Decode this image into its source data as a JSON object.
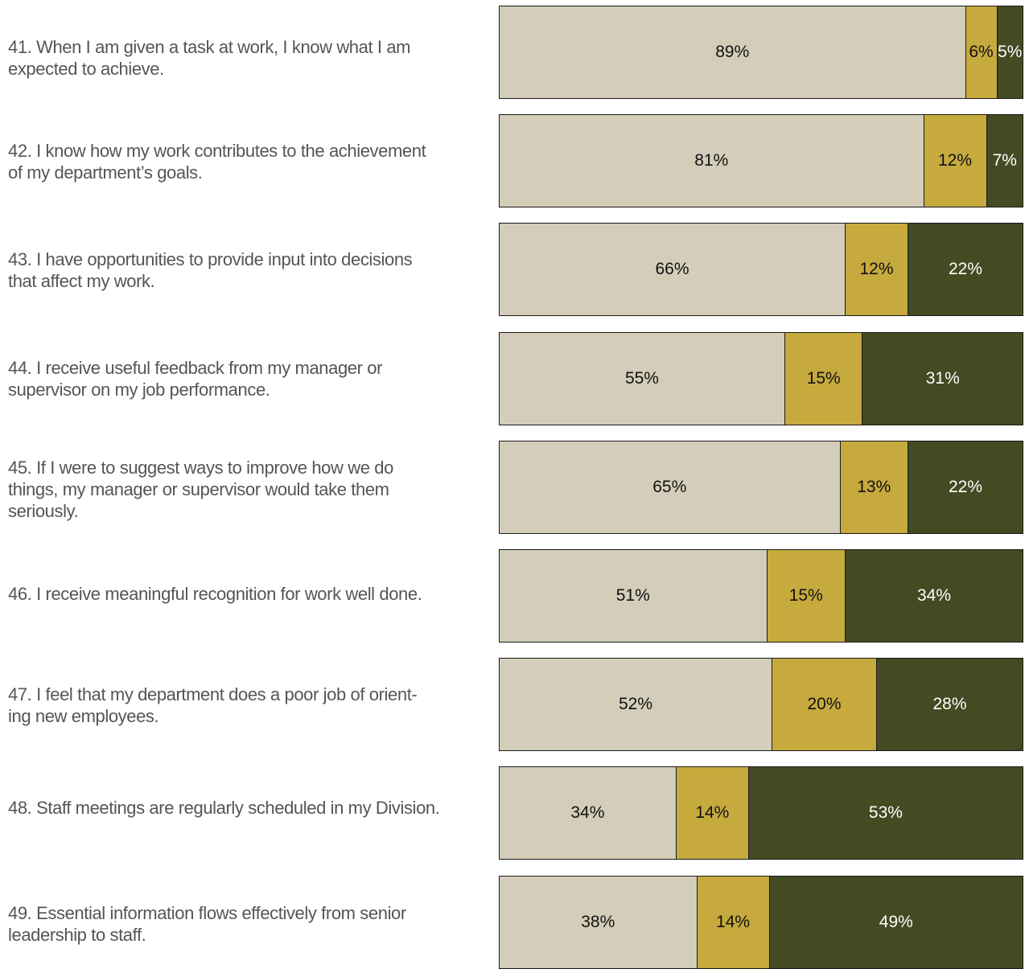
{
  "colors": {
    "agree": "#d3cdb9",
    "neutral": "#c6aa3e",
    "disagree": "#434b22"
  },
  "chart_data": {
    "type": "bar",
    "orientation": "horizontal",
    "stacked": true,
    "categories": [
      "41. When I am given a task at work, I know what I am expected to achieve.",
      "42. I know how my work contributes to the achievement of my department’s goals.",
      "43. I have opportunities to provide input into decisions that affect my work.",
      "44. I receive useful feedback from my manager or supervisor on my job performance.",
      "45. If I were to suggest ways to improve how we do things, my manager or supervisor would take them seriously.",
      "46. I receive meaningful recognition for work well done.",
      "47. I feel that my department does a poor job of orient-ing new employees.",
      "48. Staff meetings are regularly scheduled in my Division.",
      "49. Essential information flows effectively from senior leadership to staff."
    ],
    "series": [
      {
        "key": "agree",
        "values": [
          89,
          81,
          66,
          55,
          65,
          51,
          52,
          34,
          38
        ]
      },
      {
        "key": "neutral",
        "values": [
          6,
          12,
          12,
          15,
          13,
          15,
          20,
          14,
          14
        ]
      },
      {
        "key": "disagree",
        "values": [
          5,
          7,
          22,
          31,
          22,
          34,
          28,
          53,
          49
        ]
      }
    ],
    "value_labels": [
      [
        "89%",
        "6%",
        "5%"
      ],
      [
        "81%",
        "12%",
        "7%"
      ],
      [
        "66%",
        "12%",
        "22%"
      ],
      [
        "55%",
        "15%",
        "31%"
      ],
      [
        "65%",
        "13%",
        "22%"
      ],
      [
        "51%",
        "15%",
        "34%"
      ],
      [
        "52%",
        "20%",
        "28%"
      ],
      [
        "34%",
        "14%",
        "53%"
      ],
      [
        "38%",
        "14%",
        "49%"
      ]
    ],
    "xlim": [
      0,
      100
    ],
    "legend": "none",
    "grid": false
  }
}
